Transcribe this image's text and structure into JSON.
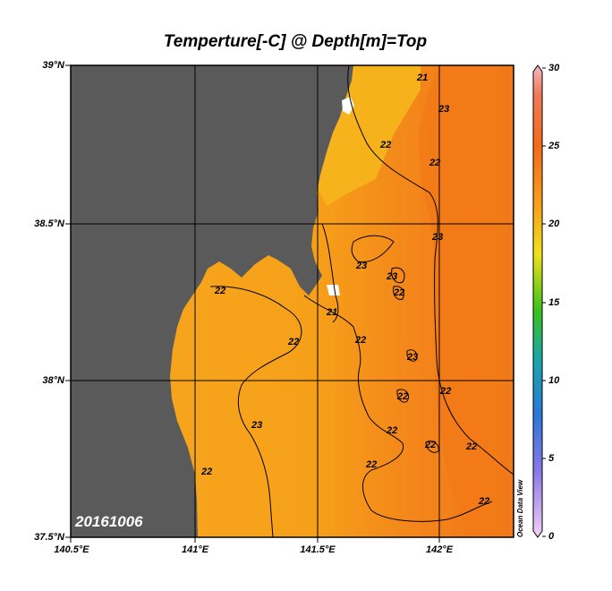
{
  "title": "Temperture[-C] @ Depth[m]=Top",
  "date_stamp": "20161006",
  "watermark": "Ocean Data View",
  "map": {
    "lat_ticks": [
      "39°N",
      "38.5°N",
      "38°N",
      "37.5°N"
    ],
    "lon_ticks": [
      "140.5°E",
      "141°E",
      "141.5°E",
      "142°E"
    ],
    "land_color": "#5a5a5a",
    "sea_base_color": "#f7a21a",
    "contour_labels": [
      "21",
      "23",
      "22",
      "22",
      "23",
      "23",
      "23",
      "22",
      "22",
      "21",
      "22",
      "22",
      "23",
      "22",
      "22",
      "23",
      "22",
      "22",
      "22",
      "22"
    ]
  },
  "colorbar": {
    "ticks": [
      "30",
      "25",
      "20",
      "15",
      "10",
      "5",
      "0"
    ],
    "stops": [
      "#f6b9c8",
      "#f08a3c",
      "#f47a1a",
      "#f6a21a",
      "#f0e21a",
      "#2fc21a",
      "#1aa5a8",
      "#2a7ad8",
      "#8a7ae8",
      "#f6c9f6"
    ]
  }
}
